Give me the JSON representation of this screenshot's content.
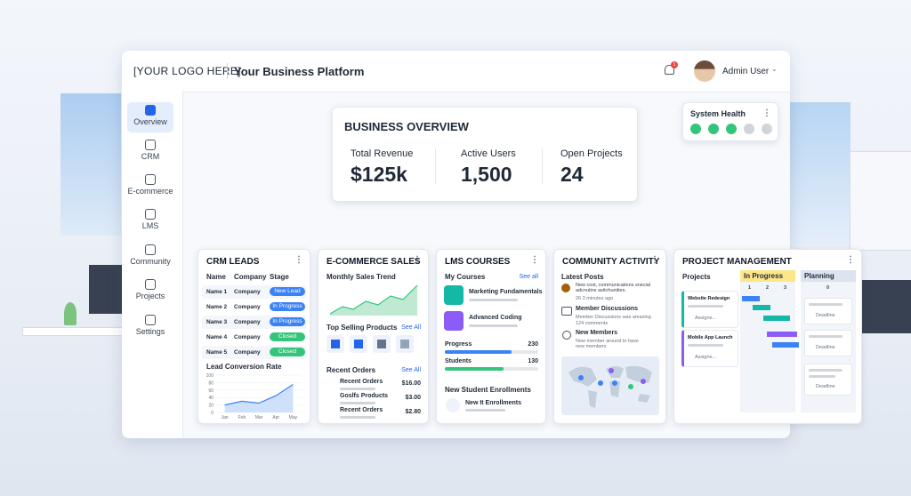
{
  "header": {
    "logo": "[YOUR LOGO HERE]",
    "platform": "Your Business Platform",
    "notification_count": "1",
    "user": "Admin User"
  },
  "sidebar": {
    "items": [
      "Overview",
      "CRM",
      "E-commerce",
      "LMS",
      "Community",
      "Projects",
      "Settings"
    ]
  },
  "overview": {
    "title": "BUSINESS OVERVIEW",
    "metrics": [
      {
        "label": "Total Revenue",
        "value": "$125k"
      },
      {
        "label": "Active Users",
        "value": "1,500"
      },
      {
        "label": "Open Projects",
        "value": "24"
      }
    ]
  },
  "system_health": {
    "title": "System Health"
  },
  "crm": {
    "title": "CRM LEADS",
    "columns": [
      "Name",
      "Company",
      "Stage"
    ],
    "rows": [
      [
        "Name 1",
        "Company",
        "New Lead"
      ],
      [
        "Name 2",
        "Company",
        "In Progress"
      ],
      [
        "Name 3",
        "Company",
        "In Progress"
      ],
      [
        "Name 4",
        "Company",
        "Closed"
      ],
      [
        "Name 5",
        "Company",
        "Closed"
      ]
    ],
    "conversion": {
      "title": "Lead Conversion Rate",
      "categories": [
        "Jan",
        "Feb",
        "Mar",
        "Apr",
        "May"
      ],
      "values": [
        20,
        30,
        25,
        45,
        75
      ],
      "ylim": [
        0,
        100
      ],
      "yticks": [
        0,
        20,
        40,
        60,
        80,
        100
      ]
    }
  },
  "ecommerce": {
    "title": "E-COMMERCE SALES",
    "trend_title": "Monthly Sales Trend",
    "top_title": "Top Selling Products",
    "top_see_all": "See All",
    "orders_title": "Recent Orders",
    "orders_see_all": "See All",
    "orders": [
      [
        "Recent Orders",
        "$16.00"
      ],
      [
        "Goslfs Products",
        "$3.00"
      ],
      [
        "Recent Orders",
        "$2.80"
      ]
    ]
  },
  "lms": {
    "title": "LMS COURSES",
    "my_courses": "My Courses",
    "see_all": "See all",
    "courses": [
      "Marketing Fundamentals",
      "Advanced Coding"
    ],
    "stats": [
      {
        "label": "Progress",
        "value": "230"
      },
      {
        "label": "Students",
        "value": "130"
      }
    ],
    "enroll_title": "New Student Enrollments",
    "enroll_item": "New It Enrollments"
  },
  "community": {
    "title": "COMMUNITY ACTIVITY",
    "latest": "Latest Posts",
    "posts": [
      {
        "text": "New cost, communications snecial adcnutins asitchunities.",
        "meta": "26 3 minutes ago"
      },
      {
        "title": "Member Discussions",
        "text": "Member Discussions was amazing",
        "meta": "124 comments"
      },
      {
        "title": "New Members",
        "text": "New member around to have new members"
      }
    ]
  },
  "projects": {
    "title": "PROJECT MANAGEMENT",
    "projects_label": "Projects",
    "columns": [
      "In Progress",
      "Planning"
    ],
    "gantt_headers": [
      "1",
      "2",
      "3"
    ],
    "planning_count": "0",
    "cards": [
      {
        "name": "Website Redesign",
        "assignee": "Assigne..."
      },
      {
        "name": "Mobile App Launch",
        "assignee": "Assigne..."
      }
    ],
    "deadlines": [
      "Deadline",
      "Deadline",
      "Deadline"
    ]
  }
}
